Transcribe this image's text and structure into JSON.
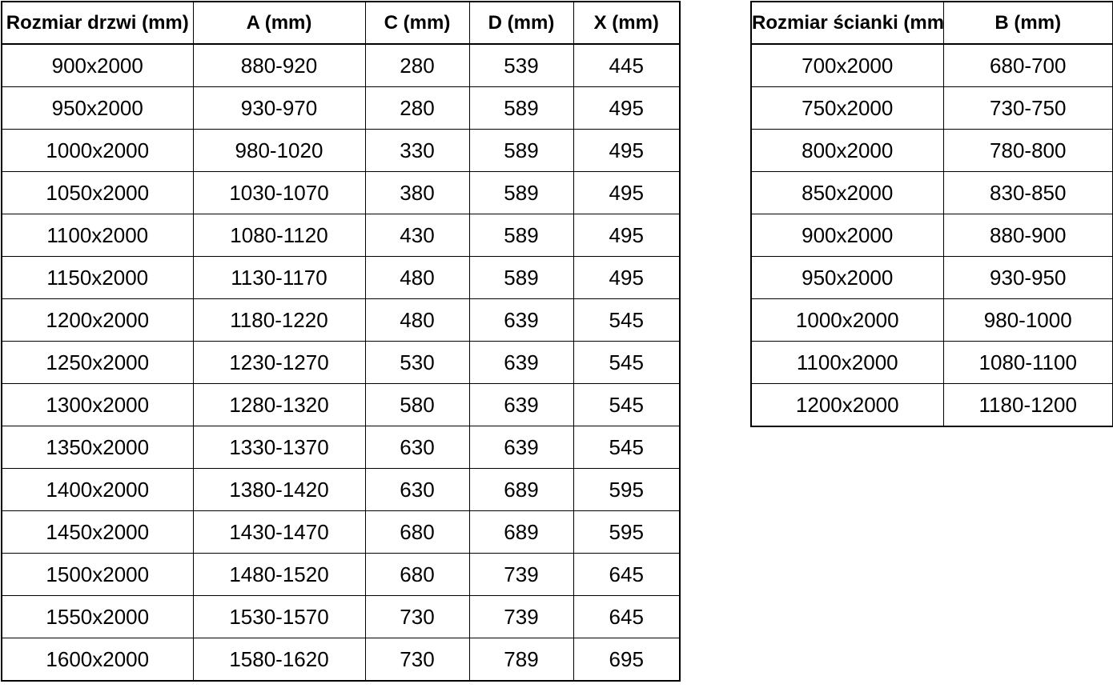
{
  "left_table": {
    "name": "door-size-table",
    "headers": [
      "Rozmiar drzwi (mm)",
      "A (mm)",
      "C (mm)",
      "D (mm)",
      "X (mm)"
    ],
    "rows": [
      [
        "900x2000",
        "880-920",
        "280",
        "539",
        "445"
      ],
      [
        "950x2000",
        "930-970",
        "280",
        "589",
        "495"
      ],
      [
        "1000x2000",
        "980-1020",
        "330",
        "589",
        "495"
      ],
      [
        "1050x2000",
        "1030-1070",
        "380",
        "589",
        "495"
      ],
      [
        "1100x2000",
        "1080-1120",
        "430",
        "589",
        "495"
      ],
      [
        "1150x2000",
        "1130-1170",
        "480",
        "589",
        "495"
      ],
      [
        "1200x2000",
        "1180-1220",
        "480",
        "639",
        "545"
      ],
      [
        "1250x2000",
        "1230-1270",
        "530",
        "639",
        "545"
      ],
      [
        "1300x2000",
        "1280-1320",
        "580",
        "639",
        "545"
      ],
      [
        "1350x2000",
        "1330-1370",
        "630",
        "639",
        "545"
      ],
      [
        "1400x2000",
        "1380-1420",
        "630",
        "689",
        "595"
      ],
      [
        "1450x2000",
        "1430-1470",
        "680",
        "689",
        "595"
      ],
      [
        "1500x2000",
        "1480-1520",
        "680",
        "739",
        "645"
      ],
      [
        "1550x2000",
        "1530-1570",
        "730",
        "739",
        "645"
      ],
      [
        "1600x2000",
        "1580-1620",
        "730",
        "789",
        "695"
      ]
    ]
  },
  "right_table": {
    "name": "wall-size-table",
    "headers": [
      "Rozmiar ścianki (mm)",
      "B (mm)"
    ],
    "rows": [
      [
        "700x2000",
        "680-700"
      ],
      [
        "750x2000",
        "730-750"
      ],
      [
        "800x2000",
        "780-800"
      ],
      [
        "850x2000",
        "830-850"
      ],
      [
        "900x2000",
        "880-900"
      ],
      [
        "950x2000",
        "930-950"
      ],
      [
        "1000x2000",
        "980-1000"
      ],
      [
        "1100x2000",
        "1080-1100"
      ],
      [
        "1200x2000",
        "1180-1200"
      ]
    ]
  },
  "colors": {
    "border": "#000000",
    "text": "#000000",
    "background": "#ffffff"
  }
}
